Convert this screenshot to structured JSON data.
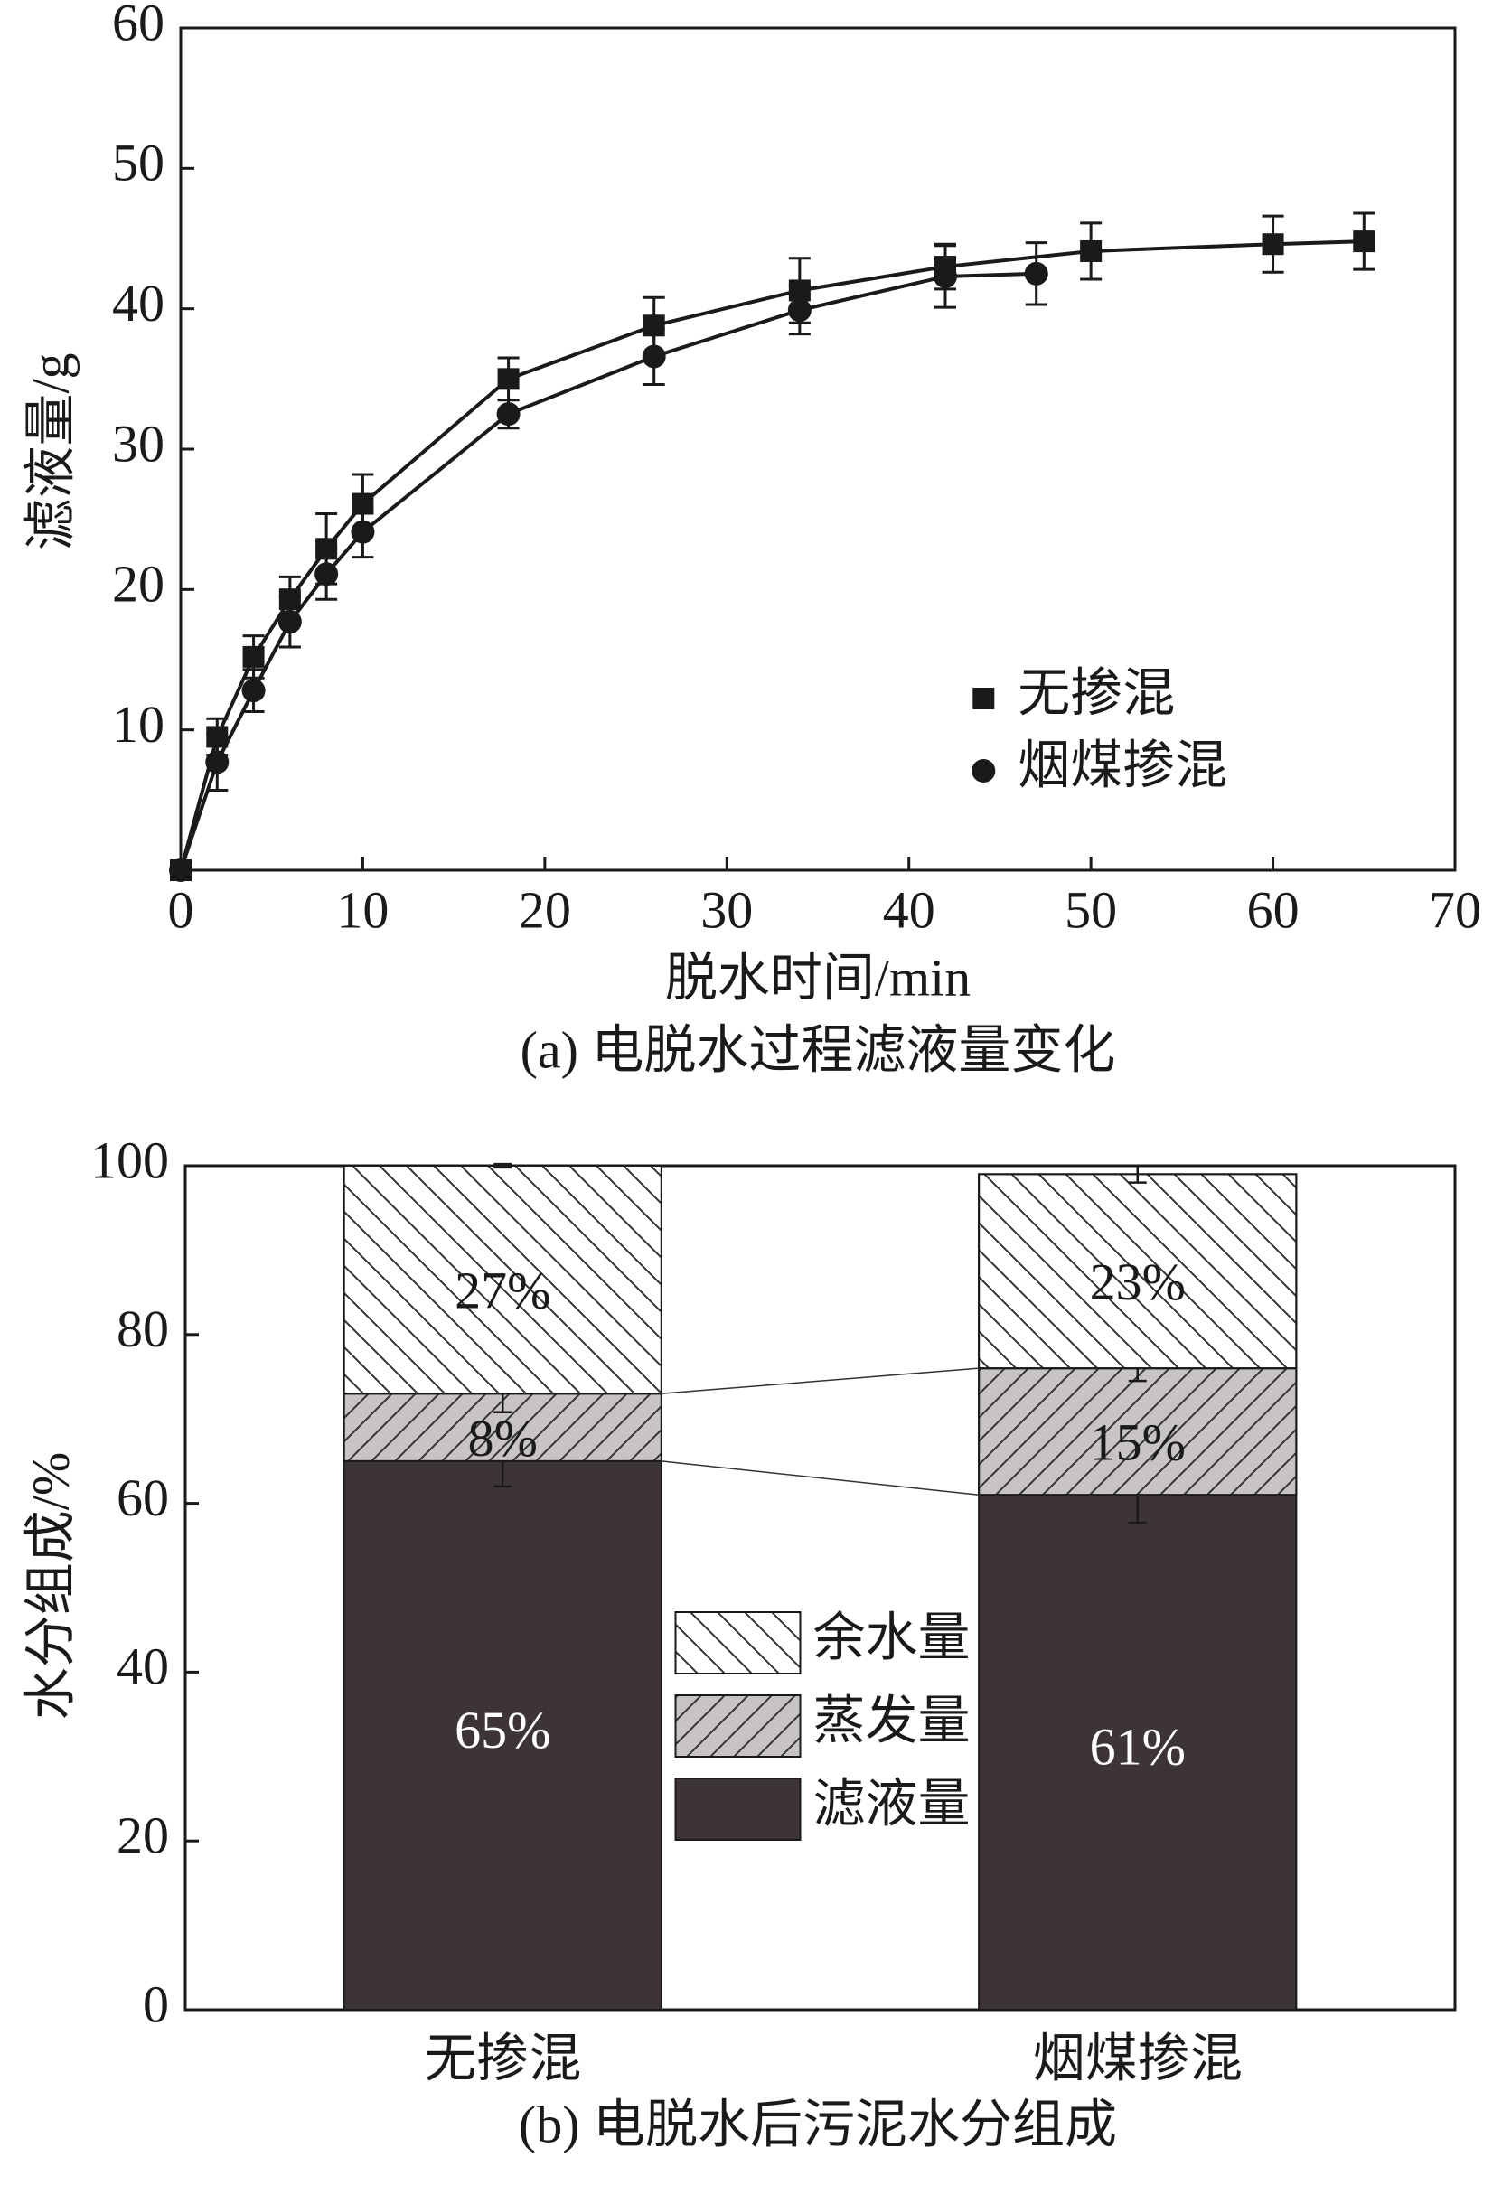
{
  "chart_data": [
    {
      "type": "line",
      "title": "(a) 电脱水过程滤液量变化",
      "xlabel": "脱水时间/min",
      "ylabel": "滤液量/g",
      "xlim": [
        0,
        70
      ],
      "xticks": [
        0,
        10,
        20,
        30,
        40,
        50,
        60,
        70
      ],
      "ylim": [
        0,
        60
      ],
      "yticks": [
        10,
        20,
        30,
        40,
        50,
        60
      ],
      "legend": "lower right",
      "series": [
        {
          "name": "无掺混",
          "color": "#1a1a1a",
          "marker": "square",
          "x": [
            0,
            2,
            4,
            6,
            8,
            10,
            18,
            26,
            34,
            42,
            50,
            60,
            65
          ],
          "values": [
            0,
            9.5,
            15.2,
            19.3,
            22.9,
            26.1,
            35,
            38.8,
            41.3,
            43,
            44.1,
            44.6,
            44.8
          ],
          "errors": [
            0,
            1.3,
            1.5,
            1.6,
            2.5,
            2.1,
            1.5,
            2,
            2.3,
            1.6,
            2,
            2,
            2
          ]
        },
        {
          "name": "烟煤掺混",
          "color": "#1a1a1a",
          "marker": "circle",
          "x": [
            0,
            2,
            4,
            6,
            8,
            10,
            18,
            26,
            34,
            42,
            47
          ],
          "values": [
            0,
            7.7,
            12.8,
            17.7,
            21.1,
            24.1,
            32.5,
            36.6,
            39.9,
            42.3,
            42.5
          ],
          "errors": [
            0,
            2,
            1.5,
            1.8,
            1.8,
            1.8,
            1,
            2,
            1.7,
            2.2,
            2.2
          ]
        }
      ]
    },
    {
      "type": "stacked_bar",
      "title": "(b) 电脱水后污泥水分组成",
      "ylabel": "水分组成/%",
      "categories": [
        "无掺混",
        "烟煤掺混"
      ],
      "ylim": [
        0,
        100
      ],
      "yticks": [
        0,
        20,
        40,
        60,
        80,
        100
      ],
      "legend": "center",
      "series": [
        {
          "name": "滤液量",
          "color": "#3d3535",
          "hatch": "none",
          "values": [
            65,
            61
          ],
          "value_labels": [
            "65%",
            "61%"
          ],
          "errors": [
            3,
            3.3
          ]
        },
        {
          "name": "蒸发量",
          "color": "#c8c4c4",
          "hatch": "diagonal",
          "values": [
            8,
            15
          ],
          "value_labels": [
            "8%",
            "15%"
          ],
          "errors": [
            2.2,
            1.5
          ]
        },
        {
          "name": "余水量",
          "color": "#ffffff",
          "hatch": "back-diagonal",
          "values": [
            27,
            23
          ],
          "value_labels": [
            "27%",
            "23%"
          ],
          "errors": [
            0.2,
            1
          ]
        }
      ]
    }
  ]
}
